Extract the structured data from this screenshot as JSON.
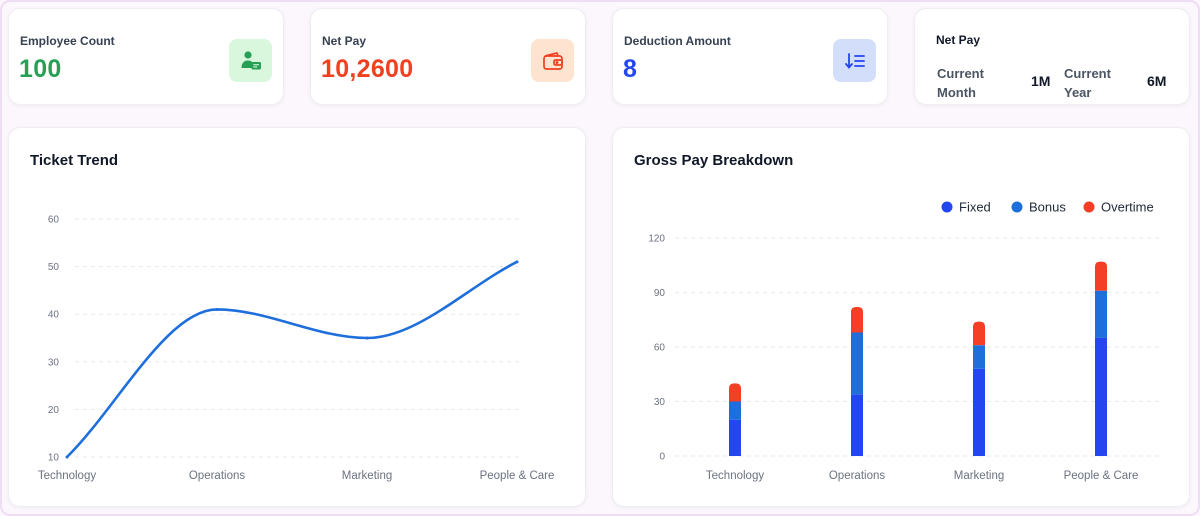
{
  "kpis": [
    {
      "title": "Employee Count",
      "value": "100",
      "color": "#27a055",
      "icon": "employee-id-icon",
      "icon_bg": "#d9f7dd"
    },
    {
      "title": "Net Pay",
      "value": "10,2600",
      "color": "#f0401f",
      "icon": "wallet-icon",
      "icon_bg": "#fde3d0"
    },
    {
      "title": "Deduction Amount",
      "value": "8",
      "color": "#2446f0",
      "icon": "sort-list-icon",
      "icon_bg": "#d3defb"
    }
  ],
  "net_pay": {
    "title": "Net Pay",
    "current_month_label": "Current Month",
    "current_month_value": "1M",
    "current_year_label": "Current Year",
    "current_year_value": "6M"
  },
  "chart_data": [
    {
      "type": "line",
      "title": "Ticket Trend",
      "categories": [
        "Technology",
        "Operations",
        "Marketing",
        "People & Care"
      ],
      "series": [
        {
          "values": [
            10,
            41,
            35,
            51
          ],
          "color": "#1e6fdc"
        }
      ],
      "yticks": [
        10,
        20,
        30,
        40,
        50,
        60
      ],
      "ylim": [
        10,
        60
      ],
      "grid": true
    },
    {
      "type": "bar",
      "stacked": true,
      "title": "Gross Pay Breakdown",
      "categories": [
        "Technology",
        "Operations",
        "Marketing",
        "People & Care"
      ],
      "series": [
        {
          "name": "Fixed",
          "values": [
            20,
            34,
            48,
            65
          ],
          "color": "#2446f0"
        },
        {
          "name": "Bonus",
          "values": [
            10,
            34,
            13,
            26
          ],
          "color": "#1e6fdc"
        },
        {
          "name": "Overtime",
          "values": [
            10,
            14,
            13,
            16
          ],
          "color": "#f43f26"
        }
      ],
      "yticks": [
        0,
        30,
        60,
        90,
        120
      ],
      "ylim": [
        0,
        120
      ],
      "legend": "top-right",
      "grid": true
    }
  ]
}
